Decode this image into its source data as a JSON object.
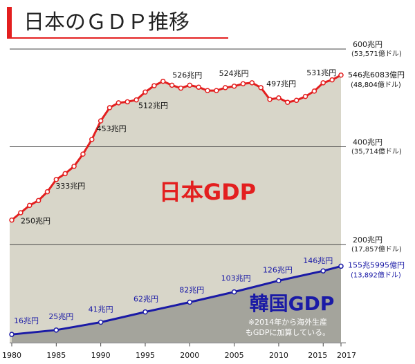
{
  "chart_data": {
    "type": "line",
    "title": "日本のＧＤＰ推移",
    "xlim": [
      1980,
      2017
    ],
    "xticks": [
      1980,
      1985,
      1990,
      1995,
      2000,
      2005,
      2010,
      2015,
      2017
    ],
    "ylim": [
      0,
      615
    ],
    "yticks": [
      {
        "value": 200,
        "label": "200兆円"
      },
      {
        "value": 400,
        "label": "400兆円"
      },
      {
        "value": 600,
        "label": "600兆円"
      }
    ],
    "ytick_usd_labels": [
      "(17,857億ドル)",
      "(35,714億ドル)",
      "(53,571億ドル)"
    ],
    "grid": true,
    "series": [
      {
        "name": "日本GDP",
        "color": "#e31f1f",
        "fill": "#d8d6c9",
        "x": [
          1980,
          1981,
          1982,
          1983,
          1984,
          1985,
          1986,
          1987,
          1988,
          1989,
          1990,
          1991,
          1992,
          1993,
          1994,
          1995,
          1996,
          1997,
          1998,
          1999,
          2000,
          2001,
          2002,
          2003,
          2004,
          2005,
          2006,
          2007,
          2008,
          2009,
          2010,
          2011,
          2012,
          2013,
          2014,
          2015,
          2016,
          2017
        ],
        "values": [
          250,
          265,
          280,
          290,
          308,
          333,
          345,
          360,
          385,
          415,
          453,
          480,
          490,
          492,
          496,
          512,
          525,
          534,
          526,
          520,
          526,
          522,
          515,
          515,
          521,
          524,
          529,
          531,
          521,
          497,
          500,
          491,
          495,
          503,
          514,
          531,
          537,
          546.6083
        ],
        "value_labels": [
          "250兆円",
          null,
          null,
          null,
          null,
          "333兆円",
          null,
          null,
          null,
          null,
          "453兆円",
          null,
          null,
          null,
          null,
          "512兆円",
          null,
          null,
          null,
          null,
          "526兆円",
          null,
          null,
          null,
          null,
          "524兆円",
          null,
          null,
          null,
          "497兆円",
          null,
          null,
          null,
          null,
          null,
          "531兆円",
          null,
          "546兆6083億円"
        ],
        "usd_label": "(48,804億ドル)"
      },
      {
        "name": "韓国GDP",
        "color": "#1a1aa6",
        "fill": "#a4a49c",
        "x": [
          1980,
          1985,
          1990,
          1995,
          2000,
          2005,
          2010,
          2015,
          2017
        ],
        "values": [
          16,
          25,
          41,
          62,
          82,
          103,
          126,
          146,
          155.5995
        ],
        "value_labels": [
          "16兆円",
          "25兆円",
          "41兆円",
          "62兆円",
          "82兆円",
          "103兆円",
          "126兆円",
          "146兆円",
          "155兆5995億円"
        ],
        "usd_label": "(13,892億ドル)"
      }
    ],
    "note": [
      "※2014年から海外生産",
      "もGDPに加算している。"
    ]
  }
}
